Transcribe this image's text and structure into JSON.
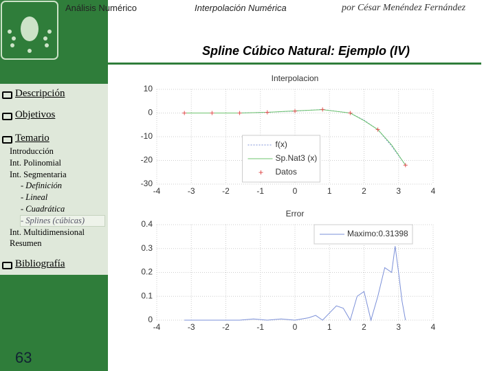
{
  "header": {
    "course": "Análisis Numérico",
    "topic": "Interpolación Numérica",
    "author": "por César Menéndez Fernández",
    "title": "Spline Cúbico Natural: Ejemplo (IV)"
  },
  "menu": {
    "sections": [
      "Descripción",
      "Objetivos",
      "Temario",
      "Bibliografía"
    ],
    "subitems": [
      "Introducción",
      "Int. Polinomial",
      "Int. Segmentaria",
      "- Definición",
      "- Lineal",
      "- Cuadrática",
      "- Splines (cúbicas)",
      "Int. Multidimensional",
      "Resumen"
    ],
    "active": 6
  },
  "page_number": "63",
  "chart_data": [
    {
      "type": "line",
      "title": "Interpolacion",
      "xlim": [
        -4,
        4
      ],
      "xticks": [
        -4,
        -3,
        -2,
        -1,
        0,
        1,
        2,
        3,
        4
      ],
      "ylim": [
        -30,
        10
      ],
      "yticks": [
        10,
        0,
        -10,
        -20,
        -30
      ],
      "grid": true,
      "legend": "lower center",
      "series": [
        {
          "name": "f(x)",
          "color": "#7a8fd8",
          "style": "dotted",
          "x": [
            -3.2,
            -2.4,
            -1.6,
            -0.8,
            0,
            0.8,
            1.6,
            2.0,
            2.4,
            2.8,
            3.2
          ],
          "values": [
            0,
            0,
            0,
            0.3,
            0.8,
            1.5,
            0,
            -3,
            -7,
            -14,
            -22
          ]
        },
        {
          "name": "Sp.Nat3 (x)",
          "color": "#6cc46c",
          "style": "solid",
          "x": [
            -3.2,
            -2.4,
            -1.6,
            -0.8,
            0,
            0.8,
            1.6,
            2.0,
            2.4,
            2.8,
            3.2
          ],
          "values": [
            0,
            0,
            0,
            0.3,
            0.9,
            1.4,
            0,
            -3.2,
            -7,
            -13.5,
            -22
          ]
        },
        {
          "name": "Datos",
          "color": "#e05050",
          "style": "markers",
          "x": [
            -3.2,
            -2.4,
            -1.6,
            -0.8,
            0,
            0.8,
            1.6,
            2.4,
            3.2
          ],
          "values": [
            0,
            0,
            0,
            0.3,
            0.8,
            1.5,
            0,
            -7,
            -22
          ]
        }
      ]
    },
    {
      "type": "line",
      "title": "Error",
      "xlim": [
        -4,
        4
      ],
      "xticks": [
        -4,
        -3,
        -2,
        -1,
        0,
        1,
        2,
        3,
        4
      ],
      "ylim": [
        0,
        0.4
      ],
      "yticks": [
        0.4,
        0.3,
        0.2,
        0.1,
        0
      ],
      "grid": true,
      "legend": "upper right",
      "series": [
        {
          "name": "Maximo:0.31398",
          "color": "#7a8fd8",
          "style": "solid",
          "x": [
            -3.2,
            -2.8,
            -2.4,
            -2.0,
            -1.6,
            -1.2,
            -0.8,
            -0.4,
            0,
            0.4,
            0.6,
            0.8,
            1.0,
            1.2,
            1.4,
            1.6,
            1.8,
            2.0,
            2.2,
            2.4,
            2.6,
            2.8,
            2.9,
            3.0,
            3.1,
            3.2
          ],
          "values": [
            0,
            0,
            0,
            0,
            0,
            0.005,
            0,
            0.005,
            0,
            0.01,
            0.02,
            0,
            0.03,
            0.06,
            0.05,
            0,
            0.1,
            0.12,
            0,
            0.1,
            0.22,
            0.2,
            0.31,
            0.2,
            0.08,
            0
          ]
        }
      ]
    }
  ]
}
